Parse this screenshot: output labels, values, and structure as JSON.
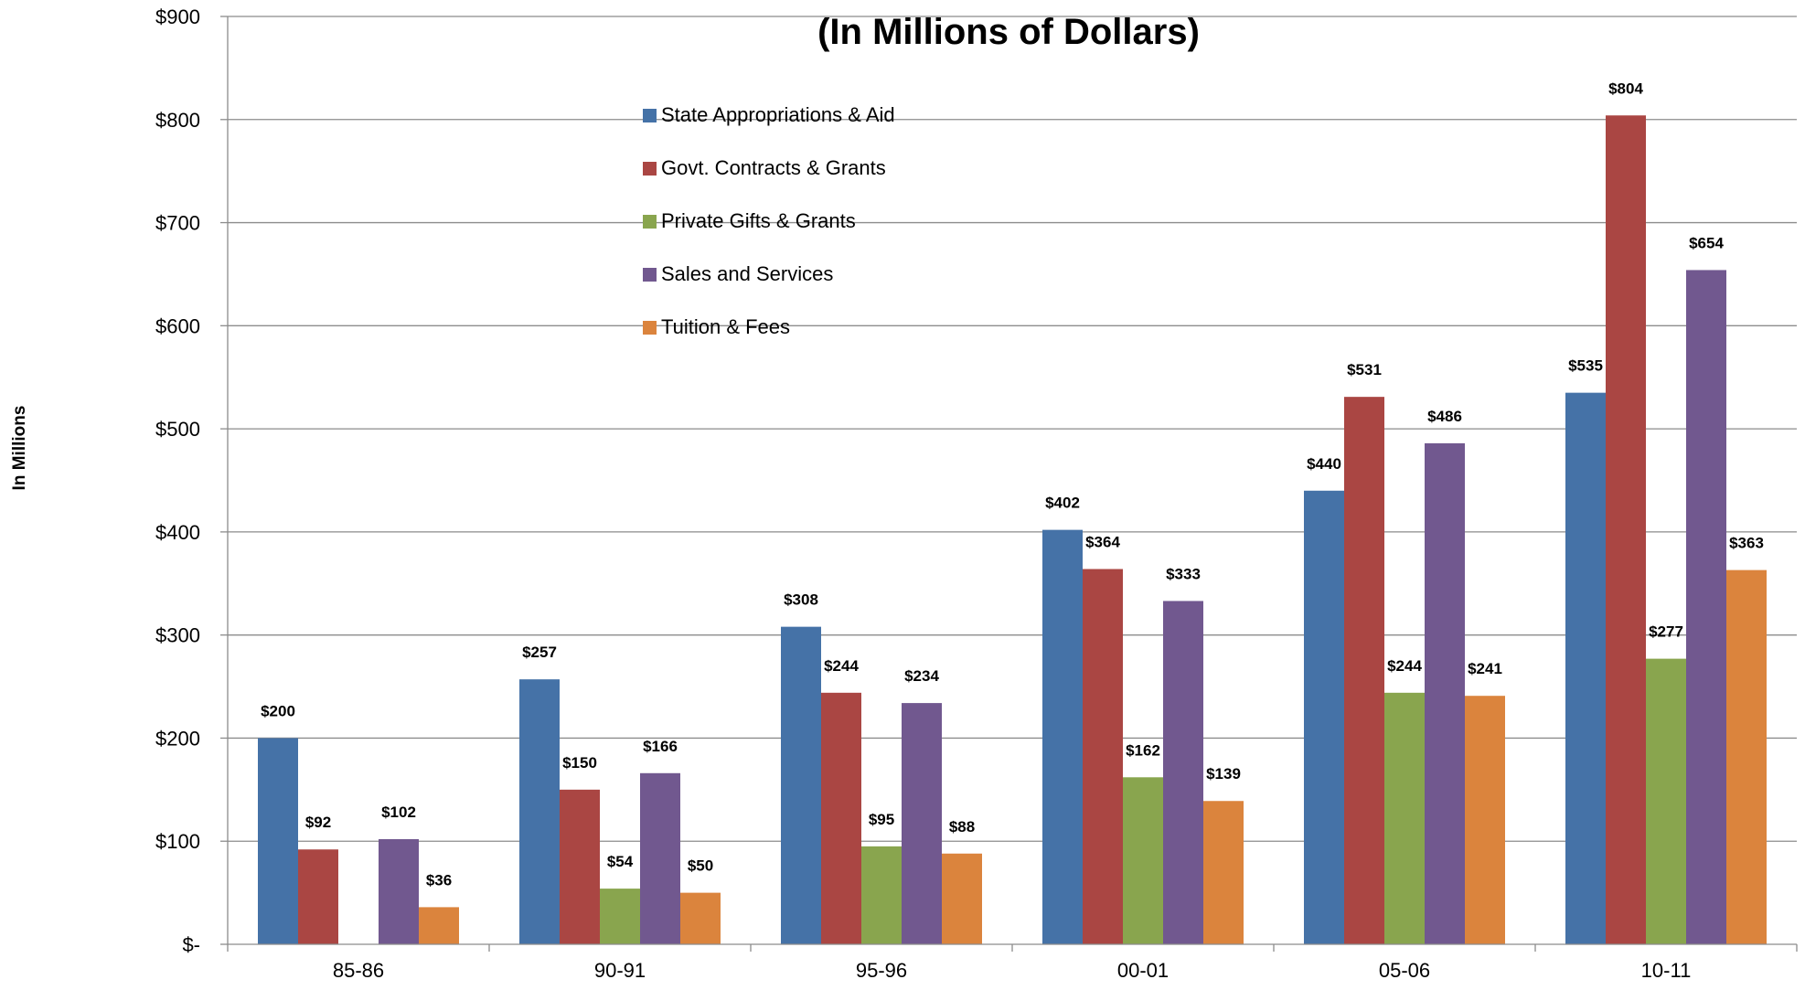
{
  "chart_data": {
    "type": "bar",
    "title": "(In Millions of Dollars)",
    "ylabel": "In Millions",
    "xlabel": "",
    "categories": [
      "85-86",
      "90-91",
      "95-96",
      "00-01",
      "05-06",
      "10-11"
    ],
    "ylim": [
      0,
      900
    ],
    "yticks": [
      0,
      100,
      200,
      300,
      400,
      500,
      600,
      700,
      800,
      900
    ],
    "ytick_labels": [
      "$-",
      "$100",
      "$200",
      "$300",
      "$400",
      "$500",
      "$600",
      "$700",
      "$800",
      "$900"
    ],
    "grid": true,
    "legend_position": "top-center",
    "series": [
      {
        "name": "State Appropriations & Aid",
        "color": "#4572A7",
        "values": [
          200,
          257,
          308,
          402,
          440,
          535
        ],
        "labels": [
          "$200",
          "$257",
          "$308",
          "$402",
          "$440",
          "$535"
        ]
      },
      {
        "name": "Govt. Contracts & Grants",
        "color": "#AA4643",
        "values": [
          92,
          150,
          244,
          364,
          531,
          804
        ],
        "labels": [
          "$92",
          "$150",
          "$244",
          "$364",
          "$531",
          "$804"
        ]
      },
      {
        "name": "Private Gifts & Grants",
        "color": "#89A54E",
        "values": [
          0,
          54,
          95,
          162,
          244,
          277
        ],
        "labels": [
          "",
          "$54",
          "$95",
          "$162",
          "$244",
          "$277"
        ]
      },
      {
        "name": "Sales and Services",
        "color": "#71588F",
        "values": [
          102,
          166,
          234,
          333,
          486,
          654
        ],
        "labels": [
          "$102",
          "$166",
          "$234",
          "$333",
          "$486",
          "$654"
        ]
      },
      {
        "name": "Tuition & Fees",
        "color": "#DB843D",
        "values": [
          36,
          50,
          88,
          139,
          241,
          363
        ],
        "labels": [
          "$36",
          "$50",
          "$88",
          "$139",
          "$241",
          "$363"
        ]
      }
    ]
  }
}
